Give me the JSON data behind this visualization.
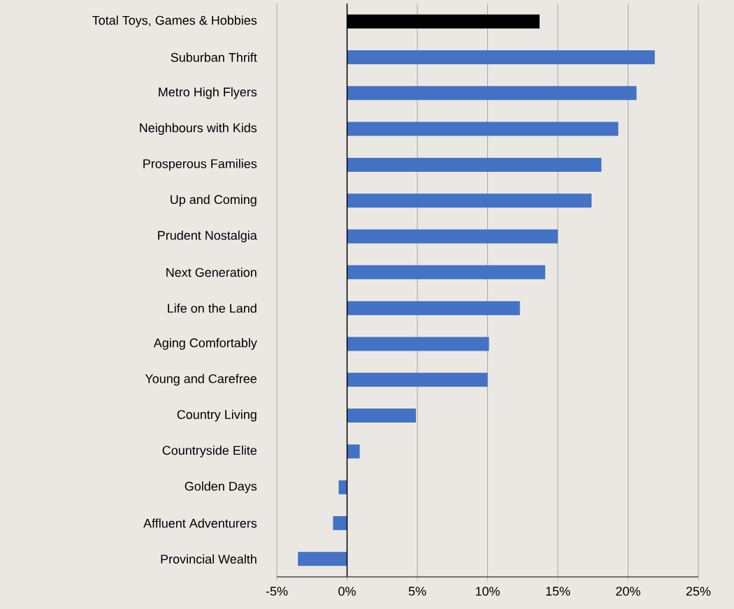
{
  "chart_data": {
    "type": "bar",
    "orientation": "horizontal",
    "categories": [
      "Total Toys, Games & Hobbies",
      "Suburban Thrift",
      "Metro High Flyers",
      "Neighbours with Kids",
      "Prosperous Families",
      "Up and Coming",
      "Prudent Nostalgia",
      "Next Generation",
      "Life on the Land",
      "Aging Comfortably",
      "Young and Carefree",
      "Country Living",
      "Countryside Elite",
      "Golden Days",
      "Affluent Adventurers",
      "Provincial Wealth"
    ],
    "values": [
      13.7,
      21.9,
      20.6,
      19.3,
      18.1,
      17.4,
      15.0,
      14.1,
      12.3,
      10.1,
      10.0,
      4.9,
      0.9,
      -0.6,
      -1.0,
      -3.5
    ],
    "colors": [
      "#000000",
      "#4472c4",
      "#4472c4",
      "#4472c4",
      "#4472c4",
      "#4472c4",
      "#4472c4",
      "#4472c4",
      "#4472c4",
      "#4472c4",
      "#4472c4",
      "#4472c4",
      "#4472c4",
      "#4472c4",
      "#4472c4",
      "#4472c4"
    ],
    "xlim": [
      -5,
      25
    ],
    "xticks": [
      {
        "value": -5,
        "label": "-5%"
      },
      {
        "value": 0,
        "label": "0%"
      },
      {
        "value": 5,
        "label": "5%"
      },
      {
        "value": 10,
        "label": "10%"
      },
      {
        "value": 15,
        "label": "15%"
      },
      {
        "value": 20,
        "label": "20%"
      },
      {
        "value": 25,
        "label": "25%"
      }
    ],
    "grid": "x"
  }
}
